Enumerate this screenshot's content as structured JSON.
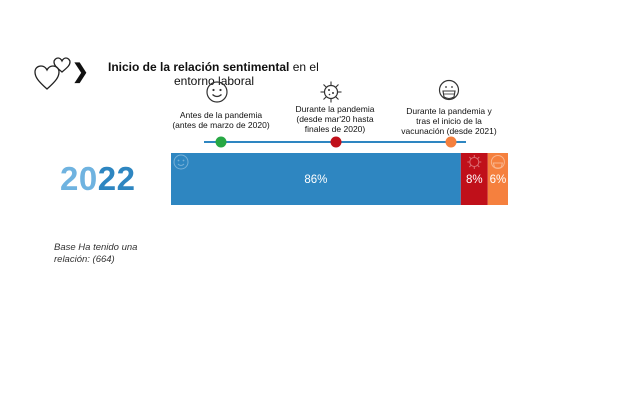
{
  "title": {
    "bold": "Inicio de la relación sentimental",
    "rest": " en el",
    "line2": "entorno laboral"
  },
  "icons": {
    "title": "hearts-icon",
    "arrow": "chevron-right-icon",
    "phase1": "smiley-icon",
    "phase2": "virus-icon",
    "phase3": "face-mask-icon"
  },
  "chart_data": {
    "type": "bar",
    "orientation": "horizontal",
    "stacked": true,
    "categories": [
      "2022"
    ],
    "series": [
      {
        "name": "Antes de la pandemia (antes de marzo de 2020)",
        "values": [
          86
        ],
        "color": "#2e86c1"
      },
      {
        "name": "Durante la pandemia (desde mar'20 hasta finales de 2020)",
        "values": [
          8
        ],
        "color": "#c0101a"
      },
      {
        "name": "Durante la pandemia y tras el inicio de la vacunación (desde 2021)",
        "values": [
          6
        ],
        "color": "#f5803e"
      }
    ],
    "data_labels": [
      "86%",
      "8%",
      "6%"
    ],
    "legend_lines": [
      [
        "Antes de la pandemia",
        "(antes de marzo de 2020)"
      ],
      [
        "Durante la pandemia",
        "(desde mar'20 hasta",
        "finales de 2020)"
      ],
      [
        "Durante la pandemia y",
        "tras el inicio de la",
        "vacunación (desde 2021)"
      ]
    ],
    "legend_dot_colors": [
      "#27a844",
      "#c0101a",
      "#f5803e"
    ],
    "timeline_color": "#2e86c1",
    "xlim": [
      0,
      100
    ],
    "legend_position": "top",
    "grid": false
  },
  "year": {
    "part1": "20",
    "part2": "22"
  },
  "base_note": "Base  Ha tenido una relación: (664)"
}
